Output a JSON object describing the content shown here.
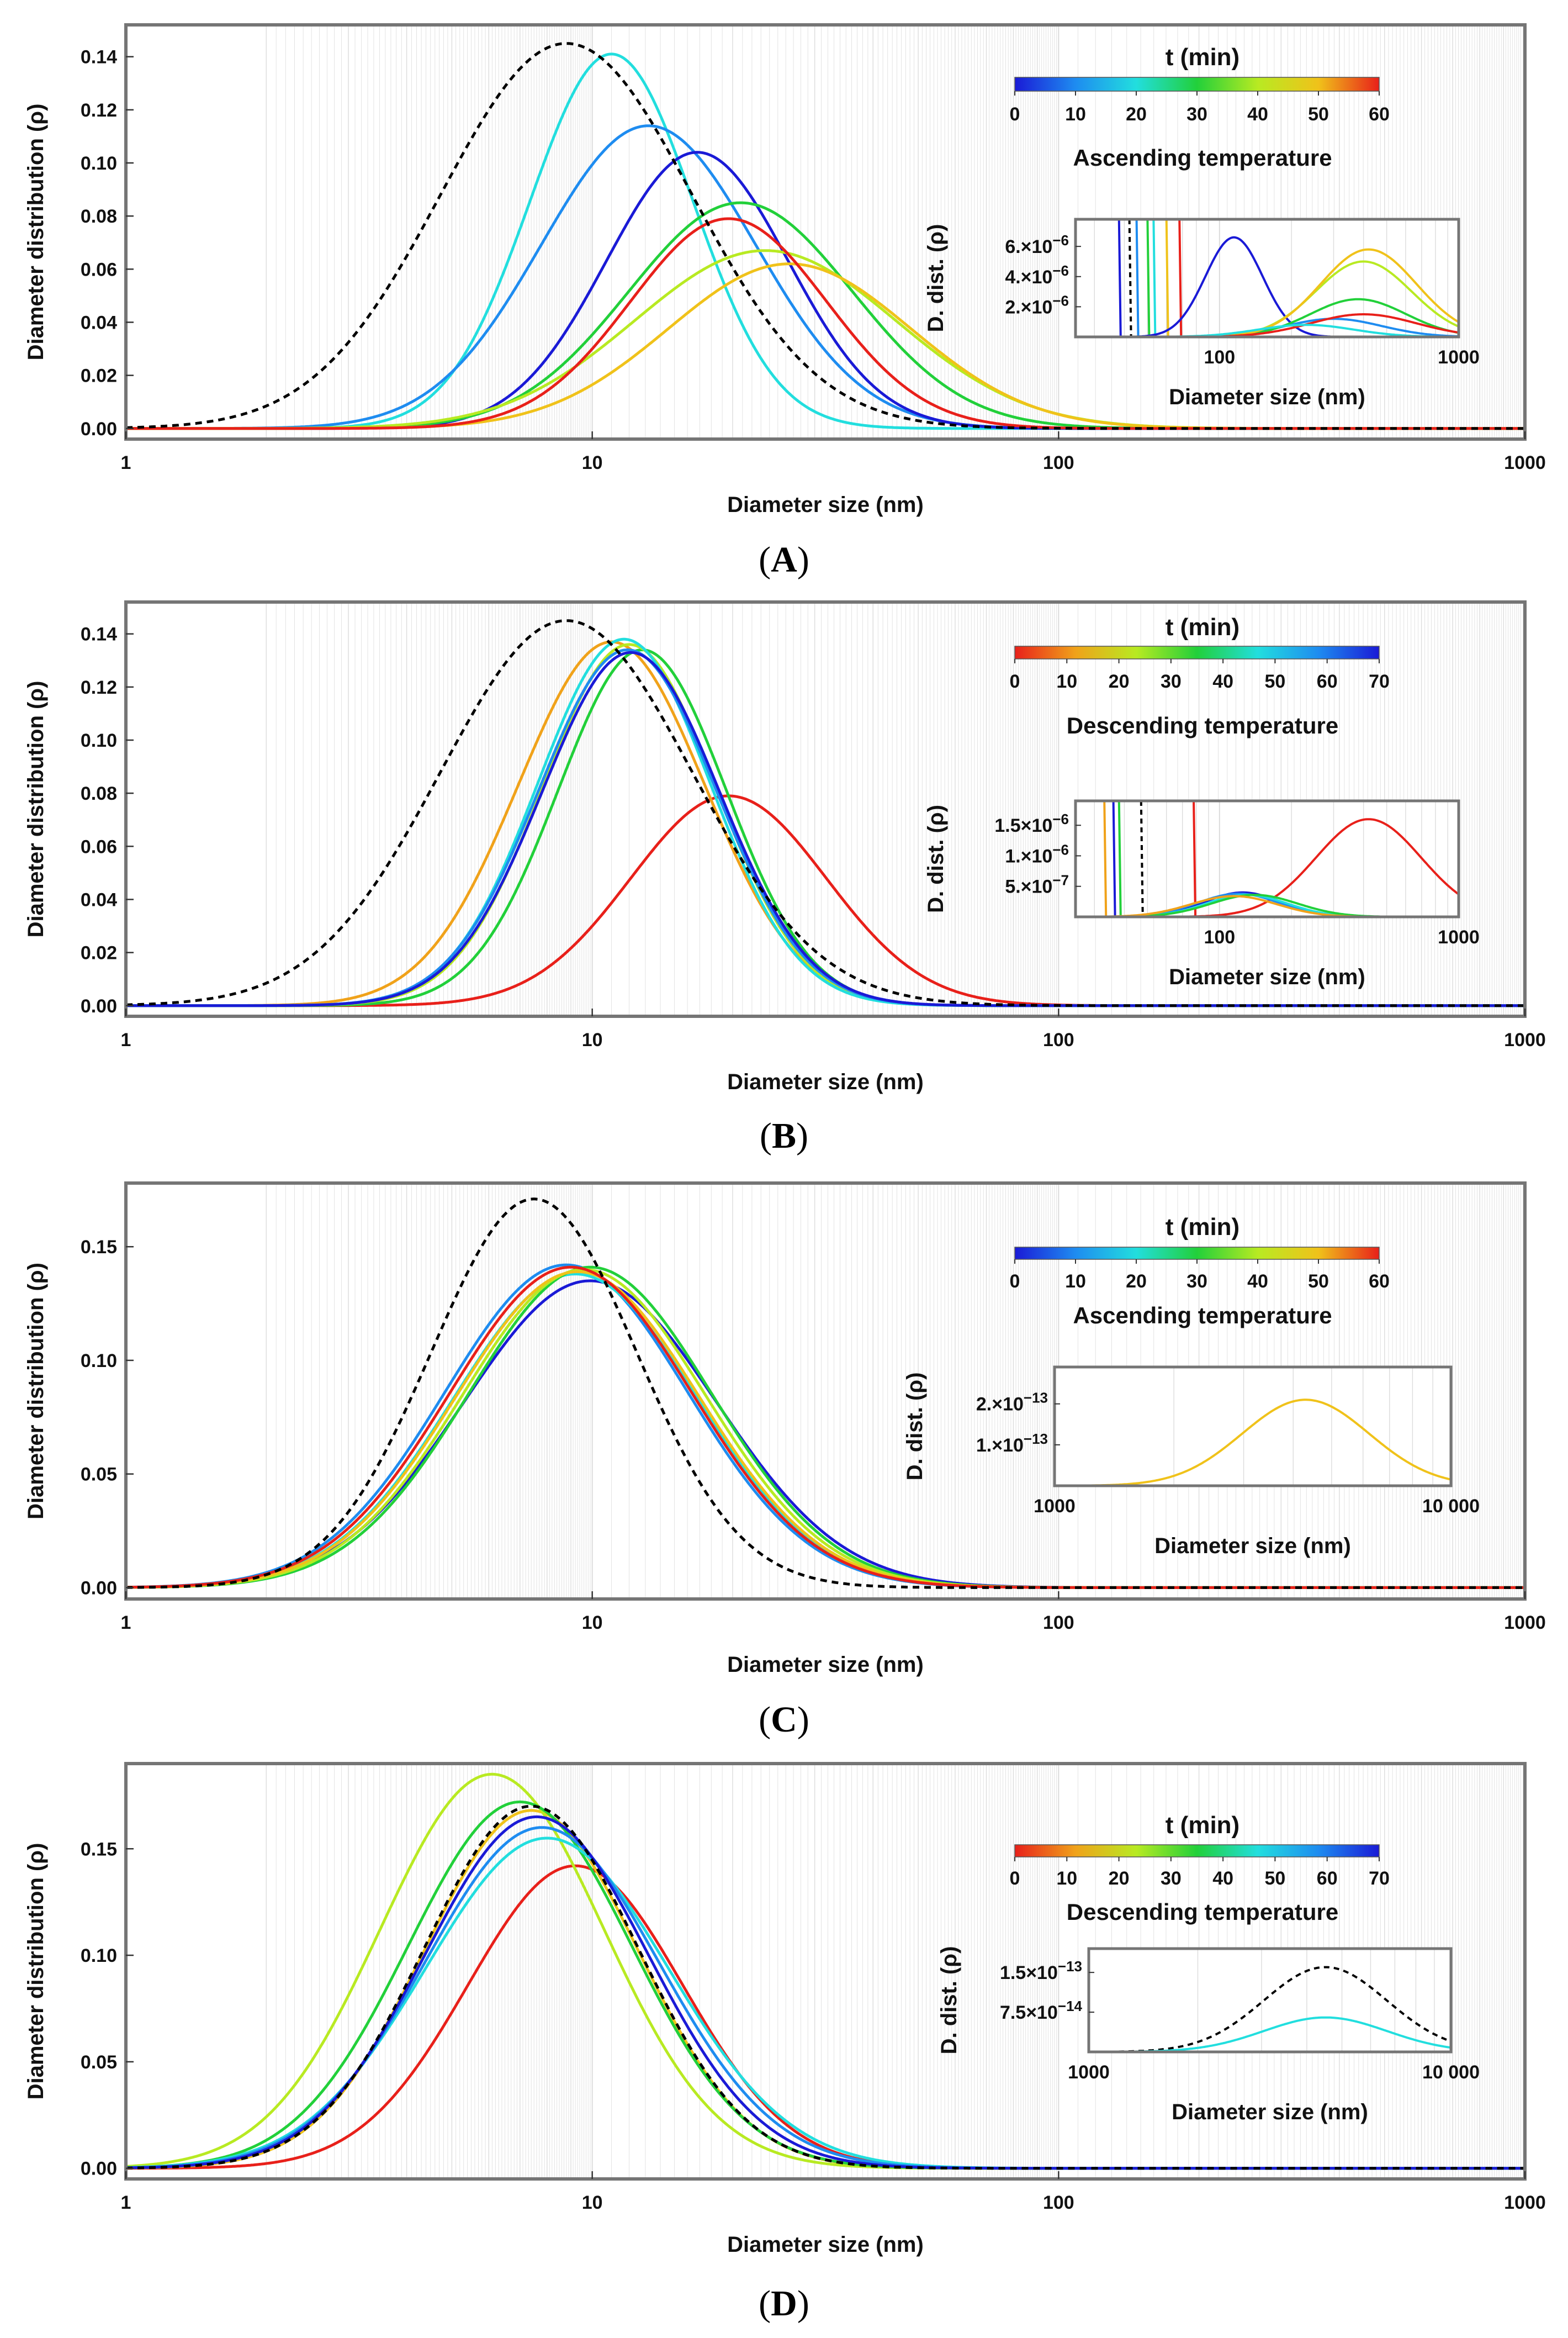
{
  "colors": {
    "frame": "#757575",
    "grid": "#dcdcdc",
    "reference": "#000000",
    "rainbow_ascending": [
      "#1a1ad6",
      "#1e8cf0",
      "#22dede",
      "#22d03a",
      "#b8ea22",
      "#f0c21a",
      "#e8201a"
    ],
    "rainbow_descending": [
      "#e8201a",
      "#f0a21a",
      "#b8ea22",
      "#22d03a",
      "#22dede",
      "#1e8cf0",
      "#1a1ad6"
    ]
  },
  "chart_data": [
    {
      "type": "line",
      "panel": "(A)",
      "caption": "A",
      "xlabel": "Diameter size (nm)",
      "ylabel": "Diameter distribution (ρ)",
      "xscale": "log",
      "xlim": [
        1,
        1000
      ],
      "ylim": [
        -0.004,
        0.152
      ],
      "xticks": [
        "1",
        "10",
        "100",
        "1000"
      ],
      "yticks": [
        {
          "v": 0.0,
          "label": "0.00"
        },
        {
          "v": 0.02,
          "label": "0.02"
        },
        {
          "v": 0.04,
          "label": "0.04"
        },
        {
          "v": 0.06,
          "label": "0.06"
        },
        {
          "v": 0.08,
          "label": "0.08"
        },
        {
          "v": 0.1,
          "label": "0.10"
        },
        {
          "v": 0.12,
          "label": "0.12"
        },
        {
          "v": 0.14,
          "label": "0.14"
        }
      ],
      "colorbar": {
        "title": "t (min)",
        "ticks": [
          "0",
          "10",
          "20",
          "30",
          "40",
          "50",
          "60"
        ],
        "note": "Ascending temperature",
        "direction": "ascending"
      },
      "series": [
        {
          "name": "reference",
          "style": "dashed",
          "peak_x": 8.8,
          "peak_y": 0.145,
          "sigma": 0.27
        },
        {
          "name": "t=0",
          "color": "#22dede",
          "peak_x": 11.0,
          "peak_y": 0.141,
          "sigma": 0.175
        },
        {
          "name": "t=10",
          "color": "#1e8cf0",
          "peak_x": 13.2,
          "peak_y": 0.114,
          "sigma": 0.23
        },
        {
          "name": "t=20",
          "color": "#1a1ad6",
          "peak_x": 16.8,
          "peak_y": 0.104,
          "sigma": 0.195
        },
        {
          "name": "t=30",
          "color": "#22d03a",
          "peak_x": 20.8,
          "peak_y": 0.085,
          "sigma": 0.24
        },
        {
          "name": "t=40",
          "color": "#b8ea22",
          "peak_x": 23.5,
          "peak_y": 0.067,
          "sigma": 0.28
        },
        {
          "name": "t=50",
          "color": "#f0c21a",
          "peak_x": 26.5,
          "peak_y": 0.062,
          "sigma": 0.26
        },
        {
          "name": "t=60",
          "color": "#e8201a",
          "peak_x": 19.6,
          "peak_y": 0.079,
          "sigma": 0.21
        }
      ],
      "inset": {
        "xlabel": "Diameter size (nm)",
        "ylabel": "D. dist. (ρ)",
        "xlim": [
          25,
          1000
        ],
        "ylim": [
          0,
          7.8e-06
        ],
        "xticks": [
          {
            "v": 100,
            "label": "100"
          },
          {
            "v": 1000,
            "label": "1000"
          }
        ],
        "yticks": [
          {
            "v": 2e-06,
            "label": "2.×10",
            "exp": "−6"
          },
          {
            "v": 4e-06,
            "label": "4.×10",
            "exp": "−6"
          },
          {
            "v": 6e-06,
            "label": "6.×10",
            "exp": "−6"
          }
        ],
        "series": [
          {
            "color": "#1a1ad6",
            "peak_x": 115,
            "peak_y": 6.6e-06,
            "sigma": 0.12
          },
          {
            "color": "#1e8cf0",
            "peak_x": 300,
            "peak_y": 1.2e-06,
            "sigma": 0.2
          },
          {
            "color": "#22d03a",
            "peak_x": 380,
            "peak_y": 2.5e-06,
            "sigma": 0.2
          },
          {
            "color": "#b8ea22",
            "peak_x": 400,
            "peak_y": 5e-06,
            "sigma": 0.2
          },
          {
            "color": "#f0c21a",
            "peak_x": 420,
            "peak_y": 5.8e-06,
            "sigma": 0.2
          },
          {
            "color": "#e8201a",
            "peak_x": 400,
            "peak_y": 1.5e-06,
            "sigma": 0.22
          },
          {
            "color": "#22dede",
            "peak_x": 230,
            "peak_y": 8e-07,
            "sigma": 0.2
          }
        ],
        "walls": [
          {
            "x": 38,
            "color": "#1a1ad6"
          },
          {
            "x": 42,
            "color": "#000000",
            "style": "dashed"
          },
          {
            "x": 45,
            "color": "#1e8cf0"
          },
          {
            "x": 50,
            "color": "#22d03a"
          },
          {
            "x": 53,
            "color": "#22dede"
          },
          {
            "x": 60,
            "color": "#f0c21a"
          },
          {
            "x": 68,
            "color": "#e8201a"
          }
        ]
      }
    },
    {
      "type": "line",
      "panel": "(B)",
      "caption": "B",
      "xlabel": "Diameter size (nm)",
      "ylabel": "Diameter distribution (ρ)",
      "xscale": "log",
      "xlim": [
        1,
        1000
      ],
      "ylim": [
        -0.004,
        0.152
      ],
      "xticks": [
        "1",
        "10",
        "100",
        "1000"
      ],
      "yticks": [
        {
          "v": 0.0,
          "label": "0.00"
        },
        {
          "v": 0.02,
          "label": "0.02"
        },
        {
          "v": 0.04,
          "label": "0.04"
        },
        {
          "v": 0.06,
          "label": "0.06"
        },
        {
          "v": 0.08,
          "label": "0.08"
        },
        {
          "v": 0.1,
          "label": "0.10"
        },
        {
          "v": 0.12,
          "label": "0.12"
        },
        {
          "v": 0.14,
          "label": "0.14"
        }
      ],
      "colorbar": {
        "title": "t (min)",
        "ticks": [
          "0",
          "10",
          "20",
          "30",
          "40",
          "50",
          "60",
          "70"
        ],
        "note": "Descending temperature",
        "direction": "descending"
      },
      "series": [
        {
          "name": "reference",
          "style": "dashed",
          "peak_x": 8.8,
          "peak_y": 0.145,
          "sigma": 0.27
        },
        {
          "name": "t=0",
          "color": "#e8201a",
          "peak_x": 19.6,
          "peak_y": 0.079,
          "sigma": 0.21
        },
        {
          "name": "t=10",
          "color": "#f0a21a",
          "peak_x": 11.0,
          "peak_y": 0.137,
          "sigma": 0.2
        },
        {
          "name": "t=20",
          "color": "#22d03a",
          "peak_x": 12.8,
          "peak_y": 0.134,
          "sigma": 0.18
        },
        {
          "name": "t=30",
          "color": "#b8ea22",
          "peak_x": 12.0,
          "peak_y": 0.136,
          "sigma": 0.185
        },
        {
          "name": "t=40",
          "color": "#22dede",
          "peak_x": 11.7,
          "peak_y": 0.138,
          "sigma": 0.185
        },
        {
          "name": "t=50",
          "color": "#1e8cf0",
          "peak_x": 11.9,
          "peak_y": 0.134,
          "sigma": 0.19
        },
        {
          "name": "t=60",
          "color": "#1a1ad6",
          "peak_x": 12.1,
          "peak_y": 0.133,
          "sigma": 0.19
        }
      ],
      "inset": {
        "xlabel": "Diameter size (nm)",
        "ylabel": "D. dist. (ρ)",
        "xlim": [
          25,
          1000
        ],
        "ylim": [
          0,
          1.9e-06
        ],
        "xticks": [
          {
            "v": 100,
            "label": "100"
          },
          {
            "v": 1000,
            "label": "1000"
          }
        ],
        "yticks": [
          {
            "v": 5e-07,
            "label": "5.×10",
            "exp": "−7"
          },
          {
            "v": 1e-06,
            "label": "1.×10",
            "exp": "−6"
          },
          {
            "v": 1.5e-06,
            "label": "1.5×10",
            "exp": "−6"
          }
        ],
        "series": [
          {
            "color": "#e8201a",
            "peak_x": 420,
            "peak_y": 1.6e-06,
            "sigma": 0.22
          },
          {
            "color": "#1a1ad6",
            "peak_x": 125,
            "peak_y": 4e-07,
            "sigma": 0.16
          },
          {
            "color": "#1e8cf0",
            "peak_x": 120,
            "peak_y": 3.8e-07,
            "sigma": 0.17
          },
          {
            "color": "#22dede",
            "peak_x": 130,
            "peak_y": 3.6e-07,
            "sigma": 0.17
          },
          {
            "color": "#22d03a",
            "peak_x": 140,
            "peak_y": 3.6e-07,
            "sigma": 0.18
          },
          {
            "color": "#f0a21a",
            "peak_x": 115,
            "peak_y": 3.4e-07,
            "sigma": 0.18
          }
        ],
        "walls": [
          {
            "x": 33,
            "color": "#f0a21a"
          },
          {
            "x": 36,
            "color": "#1a1ad6"
          },
          {
            "x": 38,
            "color": "#22d03a"
          },
          {
            "x": 47,
            "color": "#000000",
            "style": "dashed"
          },
          {
            "x": 78,
            "color": "#e8201a"
          }
        ]
      }
    },
    {
      "type": "line",
      "panel": "(C)",
      "caption": "C",
      "xlabel": "Diameter size (nm)",
      "ylabel": "Diameter distribution (ρ)",
      "xscale": "log",
      "xlim": [
        1,
        1000
      ],
      "ylim": [
        -0.005,
        0.178
      ],
      "xticks": [
        "1",
        "10",
        "100",
        "1000"
      ],
      "yticks": [
        {
          "v": 0.0,
          "label": "0.00"
        },
        {
          "v": 0.05,
          "label": "0.05"
        },
        {
          "v": 0.1,
          "label": "0.10"
        },
        {
          "v": 0.15,
          "label": "0.15"
        }
      ],
      "colorbar": {
        "title": "t (min)",
        "ticks": [
          "0",
          "10",
          "20",
          "30",
          "40",
          "50",
          "60"
        ],
        "note": "Ascending temperature",
        "direction": "ascending"
      },
      "series": [
        {
          "name": "reference",
          "style": "dashed",
          "peak_x": 7.5,
          "peak_y": 0.171,
          "sigma": 0.22
        },
        {
          "name": "t=0",
          "color": "#1a1ad6",
          "peak_x": 9.9,
          "peak_y": 0.135,
          "sigma": 0.27
        },
        {
          "name": "t=10",
          "color": "#1e8cf0",
          "peak_x": 8.8,
          "peak_y": 0.142,
          "sigma": 0.26
        },
        {
          "name": "t=20",
          "color": "#22dede",
          "peak_x": 9.2,
          "peak_y": 0.138,
          "sigma": 0.26
        },
        {
          "name": "t=30",
          "color": "#22d03a",
          "peak_x": 9.9,
          "peak_y": 0.141,
          "sigma": 0.26
        },
        {
          "name": "t=40",
          "color": "#b8ea22",
          "peak_x": 9.6,
          "peak_y": 0.14,
          "sigma": 0.26
        },
        {
          "name": "t=50",
          "color": "#f0c21a",
          "peak_x": 9.3,
          "peak_y": 0.139,
          "sigma": 0.26
        },
        {
          "name": "t=60",
          "color": "#e8201a",
          "peak_x": 9.0,
          "peak_y": 0.141,
          "sigma": 0.26
        }
      ],
      "inset": {
        "xlabel": "Diameter size (nm)",
        "ylabel": "D. dist. (ρ)",
        "xlim": [
          1000,
          10000
        ],
        "ylim": [
          0,
          2.9e-13
        ],
        "xticks": [
          {
            "v": 1000,
            "label": "1000"
          },
          {
            "v": 10000,
            "label": "10 000"
          }
        ],
        "yticks": [
          {
            "v": 1e-13,
            "label": "1.×10",
            "exp": "−13"
          },
          {
            "v": 2e-13,
            "label": "2.×10",
            "exp": "−13"
          }
        ],
        "series": [
          {
            "color": "#f0c21a",
            "peak_x": 4300,
            "peak_y": 2.1e-13,
            "sigma": 0.16
          }
        ],
        "walls": []
      }
    },
    {
      "type": "line",
      "panel": "(D)",
      "caption": "D",
      "xlabel": "Diameter size (nm)",
      "ylabel": "Diameter distribution (ρ)",
      "xscale": "log",
      "xlim": [
        1,
        1000
      ],
      "ylim": [
        -0.005,
        0.19
      ],
      "xticks": [
        "1",
        "10",
        "100",
        "1000"
      ],
      "yticks": [
        {
          "v": 0.0,
          "label": "0.00"
        },
        {
          "v": 0.05,
          "label": "0.05"
        },
        {
          "v": 0.1,
          "label": "0.10"
        },
        {
          "v": 0.15,
          "label": "0.15"
        }
      ],
      "colorbar": {
        "title": "t (min)",
        "ticks": [
          "0",
          "10",
          "20",
          "30",
          "40",
          "50",
          "60",
          "70"
        ],
        "note": "Descending temperature",
        "direction": "descending"
      },
      "series": [
        {
          "name": "reference",
          "style": "dashed",
          "peak_x": 7.4,
          "peak_y": 0.17,
          "sigma": 0.23
        },
        {
          "name": "t=0",
          "color": "#e8201a",
          "peak_x": 9.2,
          "peak_y": 0.142,
          "sigma": 0.23
        },
        {
          "name": "t=10",
          "color": "#f0c21a",
          "peak_x": 7.4,
          "peak_y": 0.168,
          "sigma": 0.23
        },
        {
          "name": "t=20",
          "color": "#b8ea22",
          "peak_x": 6.1,
          "peak_y": 0.185,
          "sigma": 0.24
        },
        {
          "name": "t=30",
          "color": "#22d03a",
          "peak_x": 7.0,
          "peak_y": 0.172,
          "sigma": 0.24
        },
        {
          "name": "t=40",
          "color": "#22dede",
          "peak_x": 8.0,
          "peak_y": 0.155,
          "sigma": 0.26
        },
        {
          "name": "t=50",
          "color": "#1e8cf0",
          "peak_x": 7.8,
          "peak_y": 0.16,
          "sigma": 0.25
        },
        {
          "name": "t=60",
          "color": "#1a1ad6",
          "peak_x": 7.6,
          "peak_y": 0.165,
          "sigma": 0.24
        }
      ],
      "inset": {
        "xlabel": "Diameter size (nm)",
        "ylabel": "D. dist. (ρ)",
        "xlim": [
          1000,
          10000
        ],
        "ylim": [
          0,
          1.95e-13
        ],
        "xticks": [
          {
            "v": 1000,
            "label": "1000"
          },
          {
            "v": 10000,
            "label": "10 000"
          }
        ],
        "yticks": [
          {
            "v": 7.5e-14,
            "label": "7.5×10",
            "exp": "−14"
          },
          {
            "v": 1.5e-13,
            "label": "1.5×10",
            "exp": "−13"
          }
        ],
        "series": [
          {
            "style": "dashed",
            "color": "#000000",
            "peak_x": 4500,
            "peak_y": 1.6e-13,
            "sigma": 0.17
          },
          {
            "color": "#22dede",
            "peak_x": 4500,
            "peak_y": 6.5e-14,
            "sigma": 0.17
          }
        ],
        "walls": []
      }
    }
  ]
}
